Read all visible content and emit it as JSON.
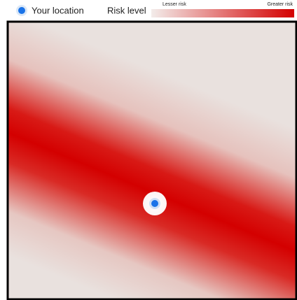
{
  "legend": {
    "location_label": "Your location",
    "risk_label": "Risk level",
    "low_label": "Lesser risk",
    "high_label": "Greater risk"
  }
}
